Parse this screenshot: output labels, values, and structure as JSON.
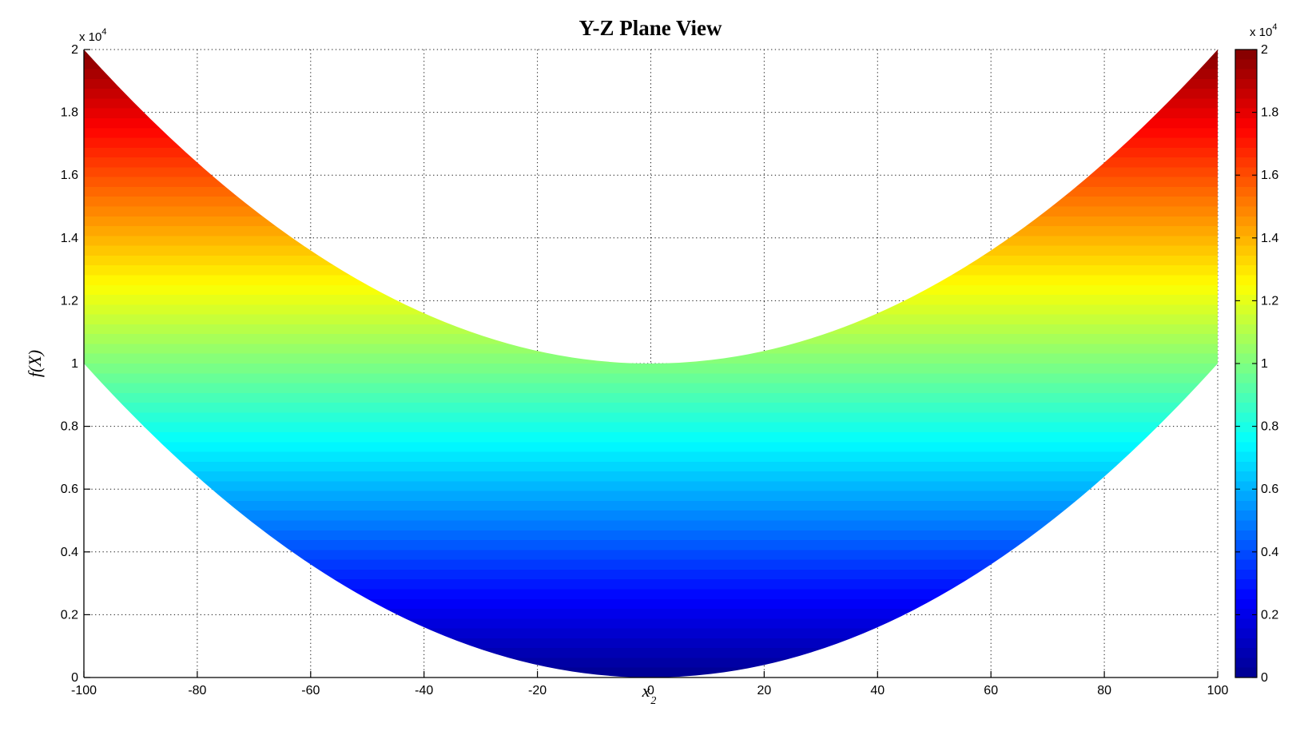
{
  "figure": {
    "background": "#FFFFFF"
  },
  "chart_data": {
    "type": "area",
    "title": "Y-Z Plane View",
    "xlabel_base": "x",
    "xlabel_sub": "2",
    "ylabel": "f(X)",
    "offset_label_prefix": "x 10",
    "offset_label_exp": "4",
    "xlim": [
      -100,
      100
    ],
    "ylim": [
      0,
      20000
    ],
    "x_tick_values": [
      -100,
      -80,
      -60,
      -40,
      -20,
      0,
      20,
      40,
      60,
      80,
      100
    ],
    "x_tick_labels": [
      "-100",
      "-80",
      "-60",
      "-40",
      "-20",
      "0",
      "20",
      "40",
      "60",
      "80",
      "100"
    ],
    "y_tick_values": [
      0,
      2000,
      4000,
      6000,
      8000,
      10000,
      12000,
      14000,
      16000,
      18000,
      20000
    ],
    "y_tick_labels": [
      "0",
      "0.2",
      "0.4",
      "0.6",
      "0.8",
      "1",
      "1.2",
      "1.4",
      "1.6",
      "1.8",
      "2"
    ],
    "grid": {
      "visible": true,
      "line_style": "dotted",
      "color": "#000000"
    },
    "axes": {
      "box": false,
      "spine_color": "#000000",
      "layer": "bottom"
    },
    "surface": {
      "description": "Side (Y-Z plane) projection of paraboloid f(X)=x1^2+x2^2, x1 and x2 in [-100,100]; filled band between lower envelope f=x2^2 and upper envelope f=x2^2+10000, colored by f value",
      "lower_envelope": "f = x2^2",
      "upper_envelope": "f = x2^2 + 10000",
      "envelope_offset": 10000,
      "colormap": "jet",
      "color_levels": 64,
      "clim": [
        0,
        20000
      ],
      "jet_anchor_stops": [
        [
          0.0,
          "#00008F"
        ],
        [
          0.125,
          "#0000FF"
        ],
        [
          0.375,
          "#00FFFF"
        ],
        [
          0.625,
          "#FFFF00"
        ],
        [
          0.875,
          "#FF0000"
        ],
        [
          1.0,
          "#800000"
        ]
      ]
    },
    "colorbar": {
      "location": "right",
      "clim": [
        0,
        20000
      ],
      "tick_values": [
        0,
        2000,
        4000,
        6000,
        8000,
        10000,
        12000,
        14000,
        16000,
        18000,
        20000
      ],
      "tick_labels": [
        "0",
        "0.2",
        "0.4",
        "0.6",
        "0.8",
        "1",
        "1.2",
        "1.4",
        "1.6",
        "1.8",
        "2"
      ],
      "offset_label_prefix": "x 10",
      "offset_label_exp": "4"
    }
  }
}
